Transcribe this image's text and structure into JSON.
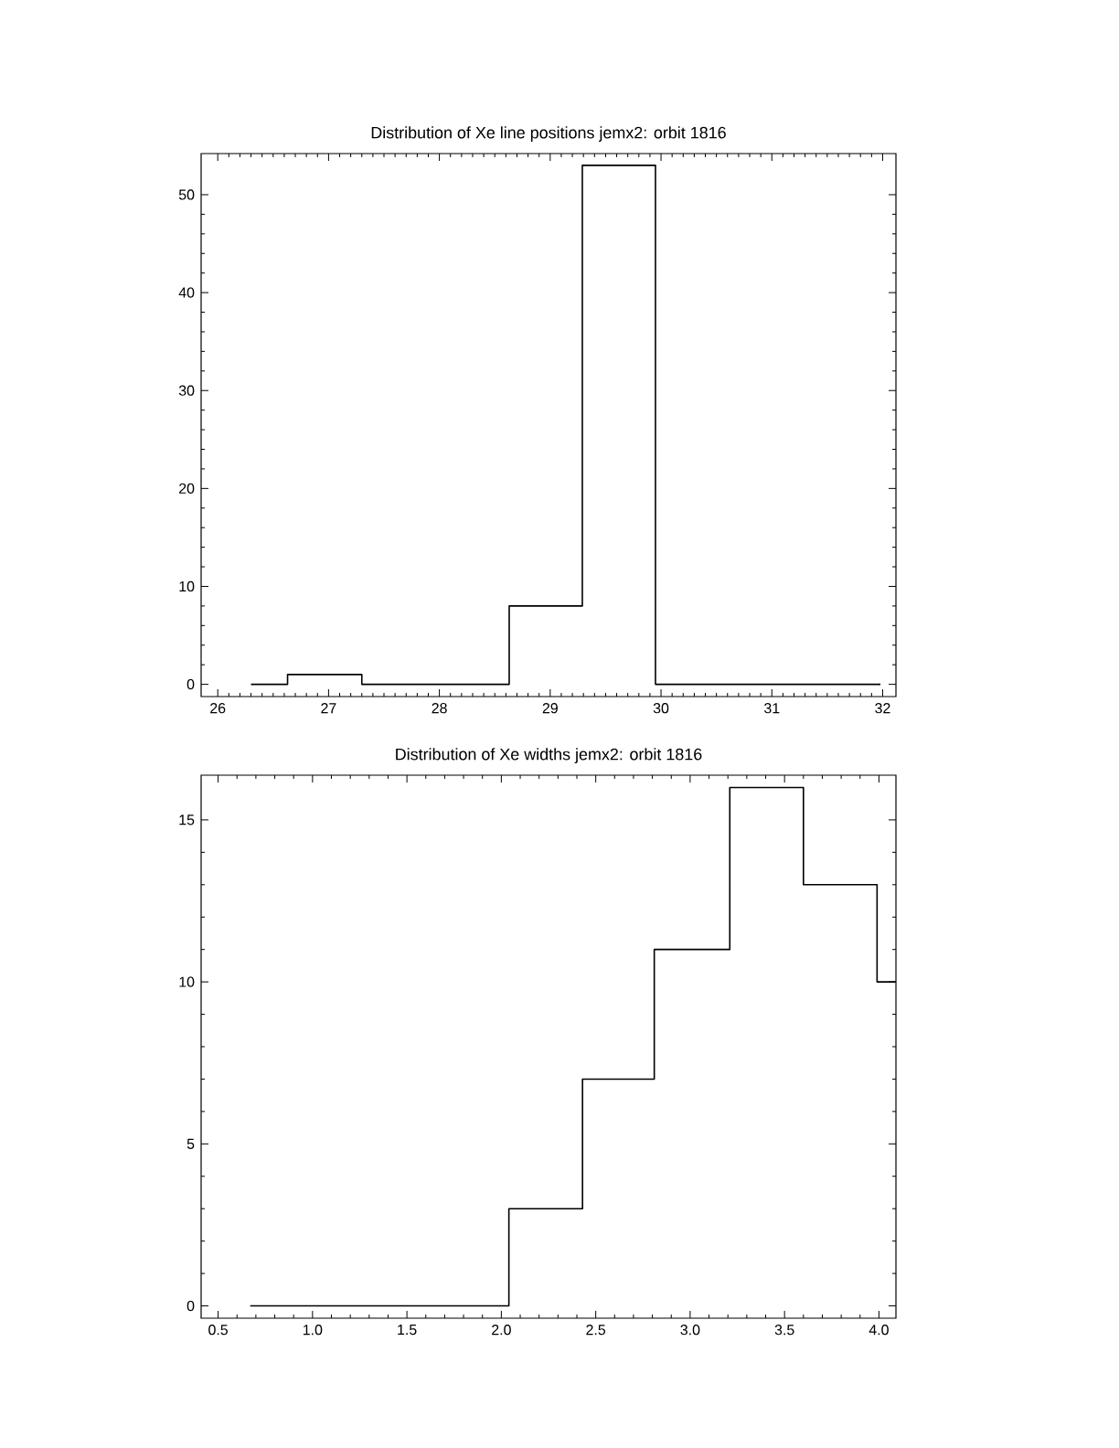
{
  "chart_data": [
    {
      "type": "histogram",
      "title": "Distribution of Xe line positions jemx2: orbit 1816",
      "color": "#000000",
      "bins": [
        26.3,
        26.63,
        27.3,
        28.63,
        29.29,
        29.95,
        31.98
      ],
      "values": [
        0,
        1,
        0,
        8,
        53,
        0
      ],
      "xlim": [
        25.85,
        32.12
      ],
      "ylim": [
        -1.25,
        54.2
      ],
      "xticks": [
        26,
        27,
        28,
        29,
        30,
        31,
        32
      ],
      "yticks": [
        0,
        10,
        20,
        30,
        40,
        50
      ],
      "grid": false
    },
    {
      "type": "histogram",
      "title": "Distribution of Xe widths jemx2: orbit 1816",
      "color": "#000000",
      "bins": [
        0.67,
        2.04,
        2.43,
        2.81,
        3.21,
        3.6,
        3.99,
        4.09
      ],
      "values": [
        0,
        3,
        7,
        11,
        16,
        13,
        10
      ],
      "xlim": [
        0.41,
        4.09
      ],
      "ylim": [
        -0.38,
        16.38
      ],
      "xticks": [
        {
          "value": 0.5,
          "label": "0.5"
        },
        {
          "value": 1.0,
          "label": "1.0"
        },
        {
          "value": 1.5,
          "label": "1.5"
        },
        {
          "value": 2.0,
          "label": "2.0"
        },
        {
          "value": 2.5,
          "label": "2.5"
        },
        {
          "value": 3.0,
          "label": "3.0"
        },
        {
          "value": 3.5,
          "label": "3.5"
        },
        {
          "value": 4.0,
          "label": "4.0"
        }
      ],
      "yticks": [
        0,
        5,
        10,
        15
      ],
      "grid": false
    }
  ]
}
